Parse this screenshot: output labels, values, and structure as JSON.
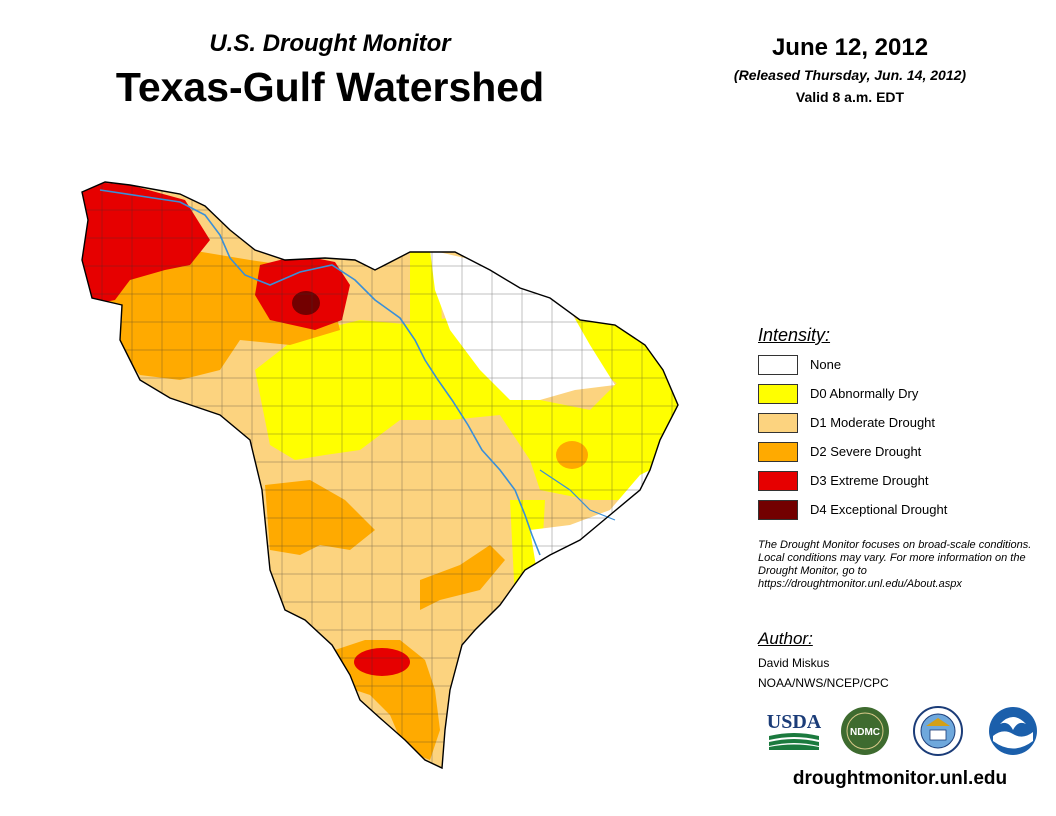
{
  "header": {
    "subtitle": "U.S. Drought Monitor",
    "title": "Texas-Gulf Watershed",
    "date": "June 12, 2012",
    "released": "(Released Thursday, Jun. 14, 2012)",
    "valid": "Valid 8 a.m. EDT"
  },
  "legend": {
    "title": "Intensity:",
    "items": [
      {
        "label": "None",
        "color": "#ffffff"
      },
      {
        "label": "D0 Abnormally Dry",
        "color": "#ffff00"
      },
      {
        "label": "D1 Moderate Drought",
        "color": "#fcd37f"
      },
      {
        "label": "D2 Severe Drought",
        "color": "#ffaa00"
      },
      {
        "label": "D3 Extreme Drought",
        "color": "#e60000"
      },
      {
        "label": "D4 Exceptional Drought",
        "color": "#730000"
      }
    ]
  },
  "note": "The Drought Monitor focuses on broad-scale conditions. Local conditions may vary. For more information on the Drought Monitor, go to https://droughtmonitor.unl.edu/About.aspx",
  "author": {
    "title": "Author:",
    "name": "David Miskus",
    "org": "NOAA/NWS/NCEP/CPC"
  },
  "logos": {
    "usda": "USDA",
    "ndmc": "NDMC",
    "doc_icon": "commerce-seal-icon",
    "noaa_icon": "noaa-icon"
  },
  "website": "droughtmonitor.unl.edu",
  "map_colors": {
    "river": "#3a8fd8",
    "boundary": "#000000"
  }
}
